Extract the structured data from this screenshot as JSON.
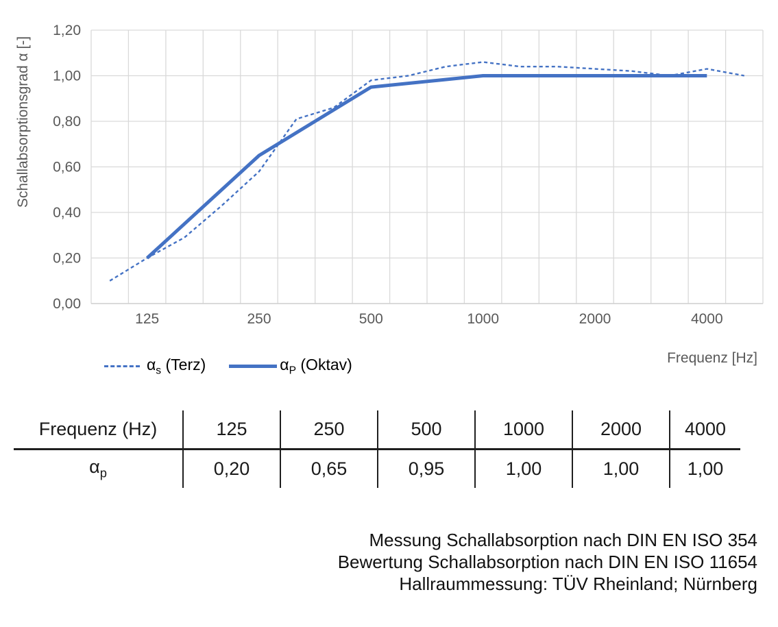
{
  "chart_data": {
    "type": "line",
    "title": "",
    "xlabel": "Frequenz [Hz]",
    "ylabel": "Schallabsorptionsgrad α [-]",
    "grid": "on",
    "legend_position": "bottom-left",
    "ylim": [
      0,
      1.2
    ],
    "ytick_labels": [
      "0,00",
      "0,20",
      "0,40",
      "0,60",
      "0,80",
      "1,00",
      "1,20"
    ],
    "x_categories": [
      "100",
      "125",
      "160",
      "200",
      "250",
      "315",
      "400",
      "500",
      "630",
      "800",
      "1000",
      "1250",
      "1600",
      "2000",
      "2500",
      "3150",
      "4000",
      "5000"
    ],
    "xtick_labels": [
      {
        "label": "125",
        "index": 1
      },
      {
        "label": "250",
        "index": 4
      },
      {
        "label": "500",
        "index": 7
      },
      {
        "label": "1000",
        "index": 10
      },
      {
        "label": "2000",
        "index": 13
      },
      {
        "label": "4000",
        "index": 16
      }
    ],
    "colors": {
      "line": "#4472C4",
      "grid": "#D9D9D9",
      "axis": "#D0D0D0",
      "tick_text": "#595959"
    },
    "series": [
      {
        "id": "alpha-s-terz",
        "name": "αs (Terz)",
        "style": "dashed",
        "values": [
          0.1,
          0.2,
          0.29,
          0.43,
          0.58,
          0.81,
          0.86,
          0.98,
          1.0,
          1.04,
          1.06,
          1.04,
          1.04,
          1.03,
          1.02,
          1.0,
          1.03,
          1.0
        ]
      },
      {
        "id": "alpha-p-oktav",
        "name": "αP (Oktav)",
        "style": "solid",
        "category_indices": [
          1,
          4,
          7,
          10,
          13,
          16
        ],
        "values": [
          0.2,
          0.65,
          0.95,
          1.0,
          1.0,
          1.0
        ]
      }
    ]
  },
  "legend": [
    {
      "symbol": "α",
      "sub": "s",
      "rest": " (Terz)"
    },
    {
      "symbol": "α",
      "sub": "P",
      "rest": " (Oktav)"
    }
  ],
  "table": {
    "header_label": "Frequenz (Hz)",
    "frequencies": [
      "125",
      "250",
      "500",
      "1000",
      "2000",
      "4000"
    ],
    "row_symbol": "α",
    "row_sub": "p",
    "values": [
      "0,20",
      "0,65",
      "0,95",
      "1,00",
      "1,00",
      "1,00"
    ]
  },
  "footer": {
    "lines": [
      "Messung Schallabsorption nach DIN EN ISO 354",
      "Bewertung Schallabsorption nach DIN EN ISO 11654",
      "Hallraummessung: TÜV Rheinland; Nürnberg"
    ]
  }
}
